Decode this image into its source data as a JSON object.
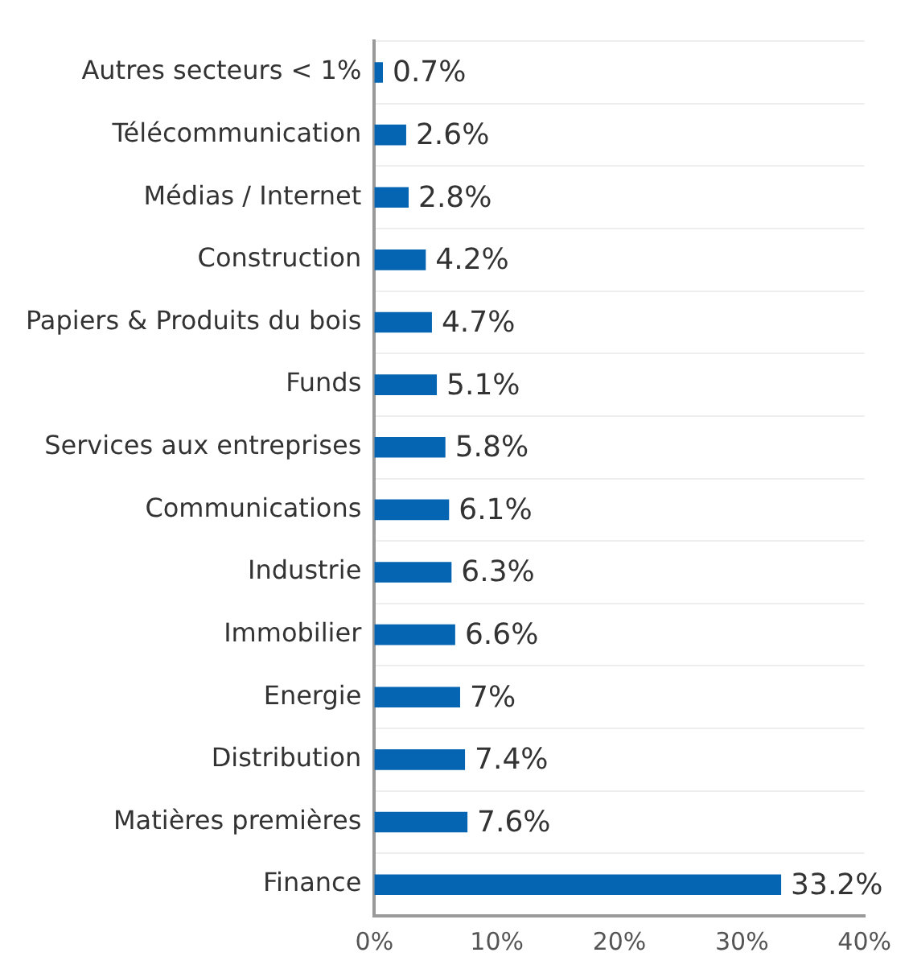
{
  "chart_data": {
    "type": "bar",
    "orientation": "horizontal",
    "categories": [
      "Autres secteurs < 1%",
      "Télécommunication",
      "Médias / Internet",
      "Construction",
      "Papiers & Produits du bois",
      "Funds",
      "Services aux entreprises",
      "Communications",
      "Industrie",
      "Immobilier",
      "Energie",
      "Distribution",
      "Matières premières",
      "Finance"
    ],
    "values": [
      0.7,
      2.6,
      2.8,
      4.2,
      4.7,
      5.1,
      5.8,
      6.1,
      6.3,
      6.6,
      7,
      7.4,
      7.6,
      33.2
    ],
    "value_labels": [
      "0.7%",
      "2.6%",
      "2.8%",
      "4.2%",
      "4.7%",
      "5.1%",
      "5.8%",
      "6.1%",
      "6.3%",
      "6.6%",
      "7%",
      "7.4%",
      "7.6%",
      "33.2%"
    ],
    "color": "#0565b2",
    "xlim": [
      0,
      40
    ],
    "xticks": [
      {
        "value": 0,
        "label": "0%"
      },
      {
        "value": 10,
        "label": "10%"
      },
      {
        "value": 20,
        "label": "20%"
      },
      {
        "value": 30,
        "label": "30%"
      },
      {
        "value": 40,
        "label": "40%"
      }
    ],
    "grid": "y",
    "legend": false
  }
}
